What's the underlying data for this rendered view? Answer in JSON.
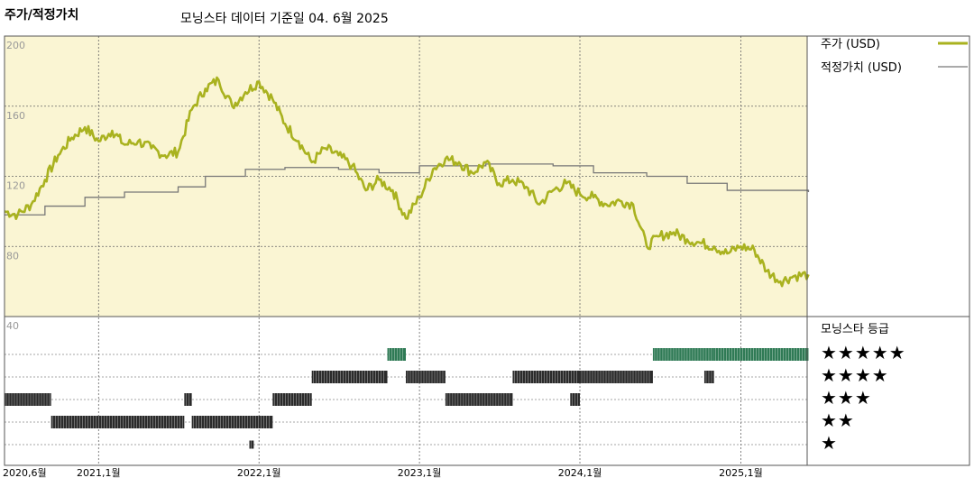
{
  "header": {
    "title": "주가/적정가치",
    "subtitle": "모닝스타 데이터 기준일 04. 6월 2025"
  },
  "colors": {
    "price": "#a9b21f",
    "fair_value": "#777777",
    "plot_bg": "#faf5d3",
    "five_star": "#2f7a55",
    "rating_bar": "#2b2b2b"
  },
  "legend": {
    "price": "주가 (USD)",
    "fair_value": "적정가치 (USD)",
    "rating_title": "모닝스타 등급"
  },
  "stars": [
    "★★★★★",
    "★★★★",
    "★★★",
    "★★",
    "★"
  ],
  "chart_data": {
    "type": "line",
    "x_ticks": [
      "2020,6월",
      "2021,1월",
      "2022,1월",
      "2023,1월",
      "2024,1월",
      "2025,1월"
    ],
    "xlim": [
      "2020-06",
      "2025-06"
    ],
    "ylim": [
      40,
      200
    ],
    "y_ticks": [
      "200",
      "160",
      "120",
      "80",
      "40"
    ],
    "series": [
      {
        "name": "주가 (USD)",
        "points": [
          [
            "2020-06-01",
            100
          ],
          [
            "2020-07-01",
            98
          ],
          [
            "2020-08-01",
            104
          ],
          [
            "2020-09-01",
            118
          ],
          [
            "2020-10-01",
            132
          ],
          [
            "2020-11-01",
            142
          ],
          [
            "2020-12-01",
            148
          ],
          [
            "2021-01-01",
            140
          ],
          [
            "2021-02-01",
            146
          ],
          [
            "2021-03-01",
            138
          ],
          [
            "2021-04-01",
            140
          ],
          [
            "2021-05-01",
            136
          ],
          [
            "2021-06-01",
            132
          ],
          [
            "2021-07-01",
            134
          ],
          [
            "2021-08-01",
            158
          ],
          [
            "2021-09-01",
            170
          ],
          [
            "2021-10-01",
            175
          ],
          [
            "2021-11-01",
            160
          ],
          [
            "2021-12-01",
            168
          ],
          [
            "2022-01-01",
            174
          ],
          [
            "2022-02-01",
            164
          ],
          [
            "2022-03-01",
            150
          ],
          [
            "2022-04-01",
            140
          ],
          [
            "2022-05-01",
            128
          ],
          [
            "2022-06-01",
            136
          ],
          [
            "2022-07-01",
            132
          ],
          [
            "2022-08-01",
            126
          ],
          [
            "2022-09-01",
            112
          ],
          [
            "2022-10-01",
            118
          ],
          [
            "2022-11-01",
            112
          ],
          [
            "2022-12-01",
            96
          ],
          [
            "2023-01-01",
            108
          ],
          [
            "2023-02-01",
            124
          ],
          [
            "2023-03-01",
            130
          ],
          [
            "2023-04-01",
            128
          ],
          [
            "2023-05-01",
            122
          ],
          [
            "2023-06-01",
            128
          ],
          [
            "2023-07-01",
            116
          ],
          [
            "2023-08-01",
            118
          ],
          [
            "2023-09-01",
            114
          ],
          [
            "2023-10-01",
            104
          ],
          [
            "2023-11-01",
            112
          ],
          [
            "2023-12-01",
            116
          ],
          [
            "2024-01-01",
            110
          ],
          [
            "2024-02-01",
            108
          ],
          [
            "2024-03-01",
            104
          ],
          [
            "2024-04-01",
            106
          ],
          [
            "2024-05-01",
            104
          ],
          [
            "2024-06-01",
            80
          ],
          [
            "2024-07-01",
            86
          ],
          [
            "2024-08-01",
            88
          ],
          [
            "2024-09-01",
            84
          ],
          [
            "2024-10-01",
            82
          ],
          [
            "2024-11-01",
            80
          ],
          [
            "2024-12-01",
            76
          ],
          [
            "2025-01-01",
            80
          ],
          [
            "2025-02-01",
            78
          ],
          [
            "2025-03-01",
            66
          ],
          [
            "2025-04-01",
            60
          ],
          [
            "2025-05-01",
            63
          ],
          [
            "2025-06-04",
            64
          ]
        ]
      },
      {
        "name": "적정가치 (USD)",
        "points": [
          [
            "2020-06-01",
            98
          ],
          [
            "2020-09-01",
            103
          ],
          [
            "2020-12-01",
            108
          ],
          [
            "2021-03-01",
            111
          ],
          [
            "2021-07-01",
            114
          ],
          [
            "2021-09-01",
            120
          ],
          [
            "2021-12-01",
            124
          ],
          [
            "2022-03-01",
            125
          ],
          [
            "2022-07-01",
            124
          ],
          [
            "2022-10-01",
            122
          ],
          [
            "2023-01-01",
            126
          ],
          [
            "2023-06-01",
            127
          ],
          [
            "2023-11-01",
            126
          ],
          [
            "2024-02-01",
            122
          ],
          [
            "2024-06-01",
            120
          ],
          [
            "2024-09-01",
            116
          ],
          [
            "2024-12-01",
            112
          ],
          [
            "2025-06-04",
            111
          ]
        ]
      }
    ],
    "ratings": [
      {
        "start": "2020-06-01",
        "end": "2020-09-15",
        "stars": 3
      },
      {
        "start": "2020-09-15",
        "end": "2021-07-15",
        "stars": 2
      },
      {
        "start": "2021-07-15",
        "end": "2021-08-01",
        "stars": 3
      },
      {
        "start": "2021-08-01",
        "end": "2022-02-01",
        "stars": 2
      },
      {
        "start": "2021-12-10",
        "end": "2021-12-20",
        "stars": 1
      },
      {
        "start": "2022-02-01",
        "end": "2022-05-01",
        "stars": 3
      },
      {
        "start": "2022-05-01",
        "end": "2022-10-20",
        "stars": 4
      },
      {
        "start": "2022-10-20",
        "end": "2022-12-01",
        "stars": 5
      },
      {
        "start": "2022-12-01",
        "end": "2023-03-01",
        "stars": 4
      },
      {
        "start": "2023-03-01",
        "end": "2023-08-01",
        "stars": 3
      },
      {
        "start": "2023-08-01",
        "end": "2024-01-01",
        "stars": 4
      },
      {
        "start": "2023-12-10",
        "end": "2024-01-01",
        "stars": 3
      },
      {
        "start": "2024-01-01",
        "end": "2024-06-15",
        "stars": 4
      },
      {
        "start": "2024-06-15",
        "end": "2024-11-01",
        "stars": 5
      },
      {
        "start": "2024-10-10",
        "end": "2024-11-01",
        "stars": 4
      },
      {
        "start": "2024-11-01",
        "end": "2025-06-04",
        "stars": 5
      }
    ]
  }
}
